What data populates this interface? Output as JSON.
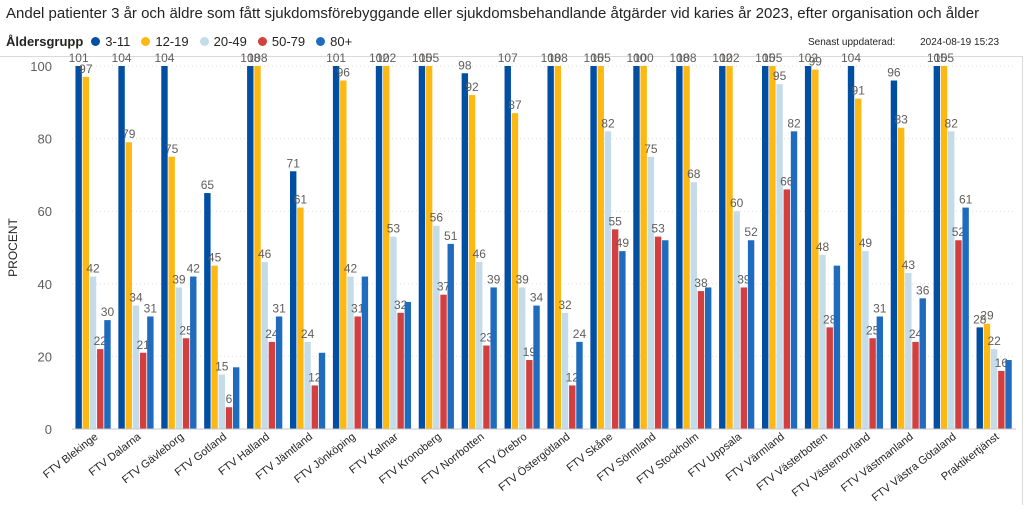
{
  "title": "Andel patienter 3 år och äldre som fått sjukdomsförebyggande eller sjukdomsbehandlande åtgärder vid karies år 2023, efter organisation och ålder",
  "legend_title": "Åldersgrupp",
  "updated_label": "Senast uppdaterad:",
  "updated_value": "2024-08-19 15:23",
  "chart_data": {
    "type": "bar",
    "title": "",
    "xlabel": "",
    "ylabel": "PROCENT",
    "ylim": [
      0,
      100
    ],
    "yticks": [
      0,
      20,
      40,
      60,
      80,
      100
    ],
    "grid": true,
    "legend_position": "top-left",
    "categories": [
      "FTV Blekinge",
      "FTV Dalarna",
      "FTV Gävleborg",
      "FTV Gotland",
      "FTV Halland",
      "FTV Jämtland",
      "FTV Jönköping",
      "FTV Kalmar",
      "FTV Kronoberg",
      "FTV Norrbotten",
      "FTV Örebro",
      "FTV Östergötland",
      "FTV Skåne",
      "FTV Sörmland",
      "FTV Stockholm",
      "FTV Uppsala",
      "FTV Värmland",
      "FTV Västerbotten",
      "FTV Västernorrland",
      "FTV Västmanland",
      "FTV Västra Götaland",
      "Praktikertjänst"
    ],
    "series": [
      {
        "name": "3-11",
        "color": "#004fa3",
        "labels": [
          "101",
          "104",
          "104",
          "65",
          "108",
          "71",
          "101",
          "102",
          "105",
          "98",
          "107",
          "108",
          "105",
          "100",
          "108",
          "102",
          "105",
          "102",
          "104",
          "96",
          "105",
          "28"
        ],
        "values": [
          101,
          104,
          104,
          65,
          108,
          71,
          101,
          102,
          105,
          98,
          107,
          108,
          105,
          100,
          108,
          102,
          105,
          102,
          104,
          96,
          105,
          28
        ]
      },
      {
        "name": "12-19",
        "color": "#fdb813",
        "labels": [
          "97",
          "79",
          "75",
          "45",
          "108",
          "61",
          "96",
          "102",
          "105",
          "92",
          "87",
          "108",
          "105",
          "100",
          "108",
          "102",
          "105",
          "99",
          "91",
          "83",
          "105",
          "29"
        ],
        "values": [
          97,
          79,
          75,
          45,
          108,
          61,
          96,
          102,
          105,
          92,
          87,
          108,
          105,
          100,
          108,
          102,
          105,
          99,
          91,
          83,
          105,
          29
        ]
      },
      {
        "name": "20-49",
        "color": "#c4dcea",
        "labels": [
          "42",
          "34",
          "39",
          "15",
          "46",
          "24",
          "42",
          "53",
          "56",
          "46",
          "39",
          "32",
          "82",
          "75",
          "68",
          "60",
          "95",
          "48",
          "49",
          "43",
          "82",
          "22"
        ],
        "values": [
          42,
          34,
          39,
          15,
          46,
          24,
          42,
          53,
          56,
          46,
          39,
          32,
          82,
          75,
          68,
          60,
          95,
          48,
          49,
          43,
          82,
          22
        ]
      },
      {
        "name": "50-79",
        "color": "#d33f3f",
        "labels": [
          "22",
          "21",
          "25",
          "6",
          "24",
          "12",
          "31",
          "32",
          "37",
          "23",
          "19",
          "12",
          "55",
          "53",
          "38",
          "39",
          "66",
          "28",
          "25",
          "24",
          "52",
          "16"
        ],
        "values": [
          22,
          21,
          25,
          6,
          24,
          12,
          31,
          32,
          37,
          23,
          19,
          12,
          55,
          53,
          38,
          39,
          66,
          28,
          25,
          24,
          52,
          16
        ]
      },
      {
        "name": "80+",
        "color": "#1f6cbf",
        "labels": [
          "30",
          "31",
          "42",
          "",
          "31",
          "",
          "",
          "",
          "51",
          "39",
          "34",
          "24",
          "49",
          "",
          "",
          "52",
          "82",
          "",
          "31",
          "36",
          "61",
          ""
        ],
        "values": [
          30,
          31,
          42,
          17,
          31,
          21,
          42,
          35,
          51,
          39,
          34,
          24,
          49,
          52,
          39,
          52,
          82,
          45,
          31,
          36,
          61,
          19
        ]
      }
    ]
  }
}
